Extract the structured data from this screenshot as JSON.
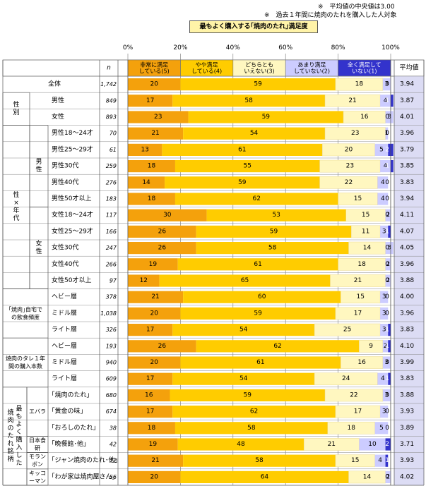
{
  "notes": {
    "line1": "※　平均値の中央値は3.00",
    "line2": "※　過去１年間に焼肉のたれを購入した人対象"
  },
  "title": "最もよく購入する｢焼肉のたれ｣満足度",
  "header": {
    "n_label": "n",
    "avg_label": "平均値"
  },
  "colors": {
    "s5": "#f4a10c",
    "s4": "#ffcc00",
    "s3": "#fff7c0",
    "s2": "#ccccff",
    "s1": "#3333cc",
    "avg_bg": "#dcdcf4"
  },
  "groups": [
    {
      "label": "性別",
      "start": 1,
      "end": 2
    },
    {
      "label": "性×年代",
      "start": 3,
      "end": 12
    },
    {
      "label": "男性",
      "start": 3,
      "end": 7
    },
    {
      "label": "女性",
      "start": 8,
      "end": 12
    },
    {
      "label": "｢焼肉｣自宅での飲食頻度",
      "start": 13,
      "end": 15
    },
    {
      "label": "焼肉のタレ１年間の購入本数",
      "start": 16,
      "end": 18
    },
    {
      "label": "最もよく購入した焼肉のたれ銘柄",
      "start": 19,
      "end": 24
    },
    {
      "label": "エバラ",
      "start": 19,
      "end": 21
    },
    {
      "label": "日本食研",
      "start": 22,
      "end": 22
    },
    {
      "label": "モランボン",
      "start": 23,
      "end": 23
    },
    {
      "label": "キッコーマン",
      "start": 24,
      "end": 24
    }
  ],
  "chart_data": {
    "type": "bar",
    "orientation": "horizontal",
    "stacked": true,
    "percent": true,
    "xlim": [
      0,
      100
    ],
    "x_ticks": [
      "0%",
      "20%",
      "40%",
      "60%",
      "80%",
      "100%"
    ],
    "series": [
      {
        "name": "非常に満足している(5)",
        "values": [
          20,
          17,
          23,
          21,
          13,
          18,
          14,
          18,
          30,
          26,
          26,
          19,
          12,
          21,
          20,
          17,
          26,
          20,
          17,
          16,
          17,
          18,
          19,
          21,
          20
        ]
      },
      {
        "name": "やや満足している(4)",
        "values": [
          59,
          58,
          59,
          54,
          61,
          55,
          59,
          62,
          53,
          59,
          58,
          61,
          65,
          60,
          59,
          54,
          62,
          61,
          54,
          59,
          62,
          58,
          48,
          58,
          64
        ]
      },
      {
        "name": "どちらともいえない(3)",
        "values": [
          18,
          21,
          16,
          23,
          20,
          23,
          22,
          15,
          15,
          11,
          14,
          18,
          21,
          15,
          17,
          25,
          9,
          16,
          24,
          22,
          17,
          18,
          21,
          15,
          14
        ]
      },
      {
        "name": "あまり満足していない(2)",
        "values": [
          3,
          4,
          3,
          1,
          5,
          4,
          4,
          4,
          2,
          3,
          3,
          2,
          2,
          3,
          3,
          3,
          2,
          3,
          4,
          3,
          3,
          5,
          10,
          4,
          2
        ]
      },
      {
        "name": "全く満足していない(1)",
        "values": [
          0,
          1,
          0,
          0,
          2,
          1,
          0,
          0,
          0,
          1,
          0,
          0,
          0,
          0,
          0,
          1,
          1,
          0,
          1,
          0,
          0,
          0,
          2,
          1,
          0
        ]
      }
    ],
    "rows": [
      {
        "label": "全体",
        "n": "1,742",
        "avg": "3.94"
      },
      {
        "label": "男性",
        "n": "849",
        "avg": "3.87"
      },
      {
        "label": "女性",
        "n": "893",
        "avg": "4.01"
      },
      {
        "label": "男性18～24才",
        "n": "70",
        "avg": "3.96"
      },
      {
        "label": "男性25～29才",
        "n": "61",
        "avg": "3.79"
      },
      {
        "label": "男性30代",
        "n": "259",
        "avg": "3.85"
      },
      {
        "label": "男性40代",
        "n": "276",
        "avg": "3.83"
      },
      {
        "label": "男性50才以上",
        "n": "183",
        "avg": "3.94"
      },
      {
        "label": "女性18～24才",
        "n": "117",
        "avg": "4.11"
      },
      {
        "label": "女性25～29才",
        "n": "166",
        "avg": "4.07"
      },
      {
        "label": "女性30代",
        "n": "247",
        "avg": "4.05"
      },
      {
        "label": "女性40代",
        "n": "266",
        "avg": "3.96"
      },
      {
        "label": "女性50才以上",
        "n": "97",
        "avg": "3.88"
      },
      {
        "label": "ヘビー層",
        "n": "378",
        "avg": "4.00"
      },
      {
        "label": "ミドル層",
        "n": "1,038",
        "avg": "3.96"
      },
      {
        "label": "ライト層",
        "n": "326",
        "avg": "3.83"
      },
      {
        "label": "ヘビー層",
        "n": "193",
        "avg": "4.10"
      },
      {
        "label": "ミドル層",
        "n": "940",
        "avg": "3.99"
      },
      {
        "label": "ライト層",
        "n": "609",
        "avg": "3.83"
      },
      {
        "label": "｢焼肉のたれ｣",
        "n": "680",
        "avg": "3.88"
      },
      {
        "label": "｢黄金の味｣",
        "n": "674",
        "avg": "3.93"
      },
      {
        "label": "｢おろしのたれ｣",
        "n": "38",
        "avg": "3.89"
      },
      {
        "label": "｢晩餐館･他｣",
        "n": "42",
        "avg": "3.71"
      },
      {
        "label": "｢ジャン焼肉のたれ･他｣",
        "n": "72",
        "avg": "3.93"
      },
      {
        "label": "｢わが家は焼肉屋さん｣",
        "n": "56",
        "avg": "4.02"
      }
    ]
  }
}
